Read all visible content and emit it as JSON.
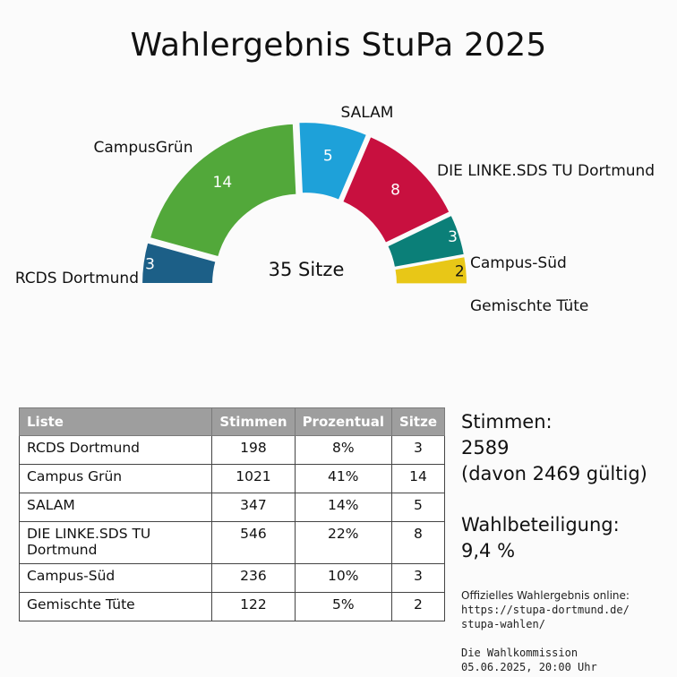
{
  "title": "Wahlergebnis StuPa 2025",
  "chart_data": {
    "type": "pie",
    "subtype": "parliament-semicircle",
    "center_label": "35 Sitze",
    "total_seats": 35,
    "segments": [
      {
        "name": "RCDS Dortmund",
        "seats": 3,
        "color": "#1c5f87"
      },
      {
        "name": "CampusGrün",
        "seats": 14,
        "color": "#52a83a"
      },
      {
        "name": "SALAM",
        "seats": 5,
        "color": "#1ea1d9"
      },
      {
        "name": "DIE LINKE.SDS TU Dortmund",
        "seats": 8,
        "color": "#c8103f"
      },
      {
        "name": "Campus-Süd",
        "seats": 3,
        "color": "#0b7f78"
      },
      {
        "name": "Gemischte Tüte",
        "seats": 2,
        "color": "#e8c717"
      }
    ]
  },
  "table": {
    "headers": [
      "Liste",
      "Stimmen",
      "Prozentual",
      "Sitze"
    ],
    "rows": [
      {
        "liste": "RCDS Dortmund",
        "stimmen": "198",
        "prozent": "8%",
        "sitze": "3"
      },
      {
        "liste": "Campus Grün",
        "stimmen": "1021",
        "prozent": "41%",
        "sitze": "14"
      },
      {
        "liste": "SALAM",
        "stimmen": "347",
        "prozent": "14%",
        "sitze": "5"
      },
      {
        "liste": "DIE LINKE.SDS TU Dortmund",
        "stimmen": "546",
        "prozent": "22%",
        "sitze": "8"
      },
      {
        "liste": "Campus-Süd",
        "stimmen": "236",
        "prozent": "10%",
        "sitze": "3"
      },
      {
        "liste": "Gemischte Tüte",
        "stimmen": "122",
        "prozent": "5%",
        "sitze": "2"
      }
    ]
  },
  "summary": {
    "stimmen_label": "Stimmen:",
    "stimmen_value": "2589",
    "stimmen_gueltig": "(davon 2469 gültig)",
    "beteiligung_label": "Wahlbeteiligung:",
    "beteiligung_value": "9,4 %"
  },
  "footer": {
    "online_label": "Offizielles Wahlergebnis online:",
    "url_line1": "https://stupa-dortmund.de/",
    "url_line2": "stupa-wahlen/",
    "kommission": "Die Wahlkommission",
    "datum": "05.06.2025, 20:00 Uhr"
  }
}
